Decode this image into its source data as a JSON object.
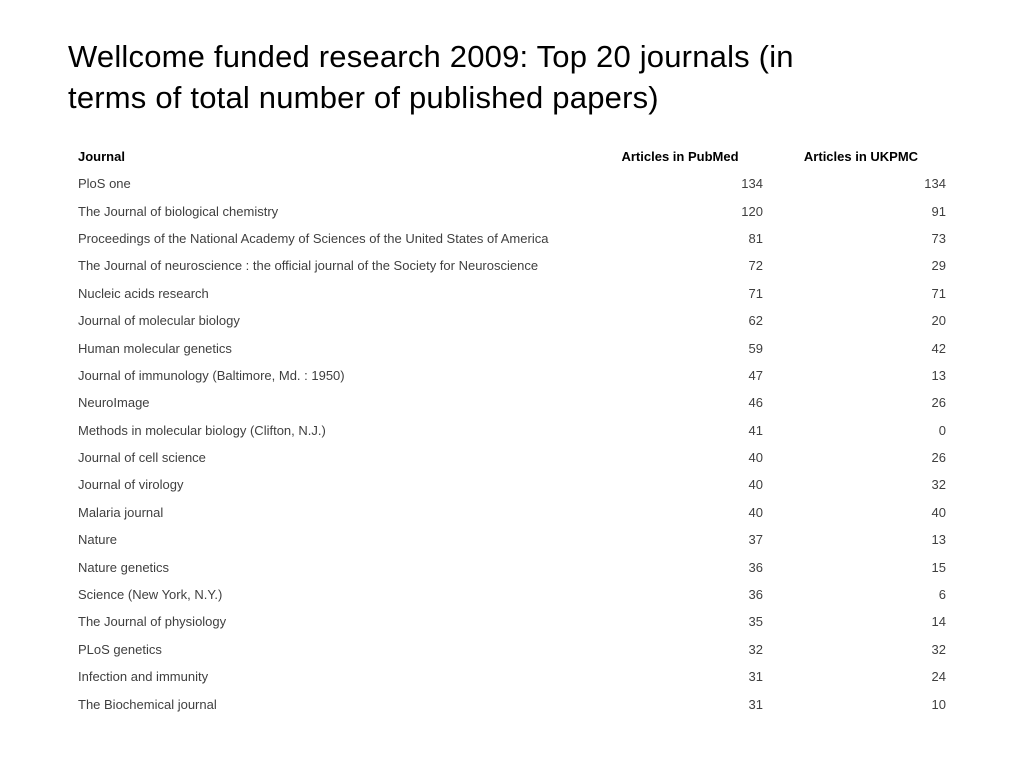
{
  "slide": {
    "title_lines": [
      "Wellcome funded research 2009: Top 20 journals (in",
      "terms of total number of published papers)"
    ]
  },
  "table": {
    "columns": [
      "Journal",
      "Articles in PubMed",
      "Articles in UKPMC"
    ],
    "rows": [
      {
        "journal": "PloS one",
        "pubmed": 134,
        "ukpmc": 134
      },
      {
        "journal": "The Journal of biological chemistry",
        "pubmed": 120,
        "ukpmc": 91
      },
      {
        "journal": "Proceedings of the National Academy of Sciences of the United States of America",
        "pubmed": 81,
        "ukpmc": 73
      },
      {
        "journal": "The Journal of neuroscience : the official journal of the Society for Neuroscience",
        "pubmed": 72,
        "ukpmc": 29
      },
      {
        "journal": "Nucleic acids research",
        "pubmed": 71,
        "ukpmc": 71
      },
      {
        "journal": "Journal of molecular biology",
        "pubmed": 62,
        "ukpmc": 20
      },
      {
        "journal": "Human molecular genetics",
        "pubmed": 59,
        "ukpmc": 42
      },
      {
        "journal": "Journal of immunology (Baltimore, Md. : 1950)",
        "pubmed": 47,
        "ukpmc": 13
      },
      {
        "journal": "NeuroImage",
        "pubmed": 46,
        "ukpmc": 26
      },
      {
        "journal": "Methods in molecular biology (Clifton, N.J.)",
        "pubmed": 41,
        "ukpmc": 0
      },
      {
        "journal": "Journal of cell science",
        "pubmed": 40,
        "ukpmc": 26
      },
      {
        "journal": "Journal of virology",
        "pubmed": 40,
        "ukpmc": 32
      },
      {
        "journal": "Malaria journal",
        "pubmed": 40,
        "ukpmc": 40
      },
      {
        "journal": "Nature",
        "pubmed": 37,
        "ukpmc": 13
      },
      {
        "journal": "Nature genetics",
        "pubmed": 36,
        "ukpmc": 15
      },
      {
        "journal": "Science (New York, N.Y.)",
        "pubmed": 36,
        "ukpmc": 6
      },
      {
        "journal": "The Journal of physiology",
        "pubmed": 35,
        "ukpmc": 14
      },
      {
        "journal": "PLoS genetics",
        "pubmed": 32,
        "ukpmc": 32
      },
      {
        "journal": "Infection and immunity",
        "pubmed": 31,
        "ukpmc": 24
      },
      {
        "journal": "The Biochemical journal",
        "pubmed": 31,
        "ukpmc": 10
      }
    ]
  }
}
